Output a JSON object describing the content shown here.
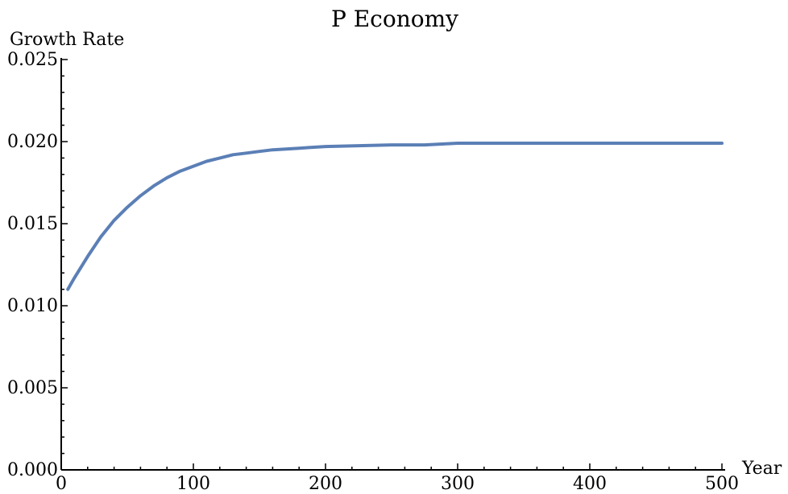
{
  "chart_data": {
    "type": "line",
    "title": "P Economy",
    "xlabel": "Year",
    "ylabel": "Growth Rate",
    "xlim": [
      0,
      500
    ],
    "ylim": [
      0,
      0.025
    ],
    "x_ticks": [
      0,
      100,
      200,
      300,
      400,
      500
    ],
    "x_tick_labels": [
      "0",
      "100",
      "200",
      "300",
      "400",
      "500"
    ],
    "y_ticks": [
      0,
      0.005,
      0.01,
      0.015,
      0.02,
      0.025
    ],
    "y_tick_labels": [
      "0.000",
      "0.005",
      "0.010",
      "0.015",
      "0.020",
      "0.025"
    ],
    "grid": false,
    "legend": "none",
    "series": [
      {
        "color": "#5b7fb6",
        "x": [
          5,
          10,
          20,
          30,
          40,
          50,
          60,
          70,
          80,
          90,
          100,
          110,
          120,
          130,
          140,
          150,
          160,
          170,
          180,
          190,
          200,
          225,
          250,
          275,
          300,
          325,
          350,
          375,
          400,
          425,
          450,
          475,
          500
        ],
        "y": [
          0.011,
          0.0117,
          0.013,
          0.0142,
          0.0152,
          0.016,
          0.0167,
          0.0173,
          0.0178,
          0.0182,
          0.0185,
          0.0188,
          0.019,
          0.0192,
          0.0193,
          0.0194,
          0.0195,
          0.01955,
          0.0196,
          0.01965,
          0.0197,
          0.01975,
          0.0198,
          0.0198,
          0.0199,
          0.0199,
          0.0199,
          0.0199,
          0.0199,
          0.0199,
          0.0199,
          0.0199,
          0.0199
        ]
      }
    ]
  }
}
